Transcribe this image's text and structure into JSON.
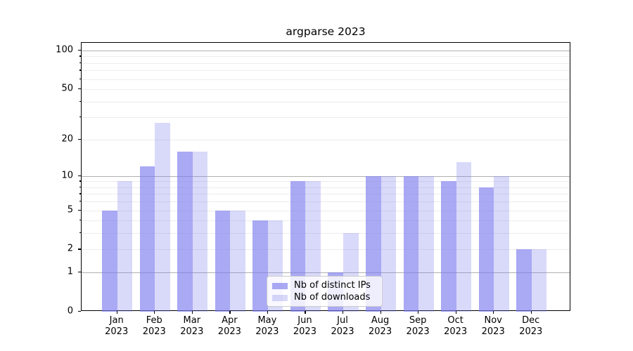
{
  "title": "argparse 2023",
  "chart_data": {
    "type": "bar",
    "title": "argparse 2023",
    "categories": [
      "Jan 2023",
      "Feb 2023",
      "Mar 2023",
      "Apr 2023",
      "May 2023",
      "Jun 2023",
      "Jul 2023",
      "Aug 2023",
      "Sep 2023",
      "Oct 2023",
      "Nov 2023",
      "Dec 2023"
    ],
    "series": [
      {
        "name": "Nb of distinct IPs",
        "values": [
          5,
          12,
          16,
          5,
          4,
          9,
          1,
          10,
          10,
          9,
          8,
          2
        ],
        "color": "rgba(124,124,239,0.66)"
      },
      {
        "name": "Nb of downloads",
        "values": [
          9,
          27,
          16,
          5,
          4,
          9,
          3,
          10,
          10,
          13,
          10,
          2
        ],
        "color": "rgba(124,124,239,0.29)"
      }
    ],
    "xlabel": "",
    "ylabel": "",
    "yscale": "log10(y+1)",
    "ylim": [
      0,
      115
    ],
    "ytick_labels": [
      "100",
      "50",
      "20",
      "10",
      "5",
      "2",
      "1",
      "0"
    ],
    "major_gridlines": [
      1,
      10,
      100
    ],
    "minor_gridlines": [
      2,
      3,
      4,
      5,
      6,
      7,
      8,
      9,
      20,
      30,
      40,
      50,
      60,
      70,
      80,
      90
    ],
    "grid": true,
    "legend_position": "lower center"
  },
  "colors": {
    "bar_dark": "rgba(124,124,239,0.66)",
    "bar_light": "rgba(124,124,239,0.29)",
    "major_grid": "#b0b0b0",
    "minor_grid": "#ececec",
    "spine": "#000000",
    "legend_border": "#cccccc",
    "legend_bg": "rgba(255,255,255,0.8)",
    "text": "#000000"
  }
}
